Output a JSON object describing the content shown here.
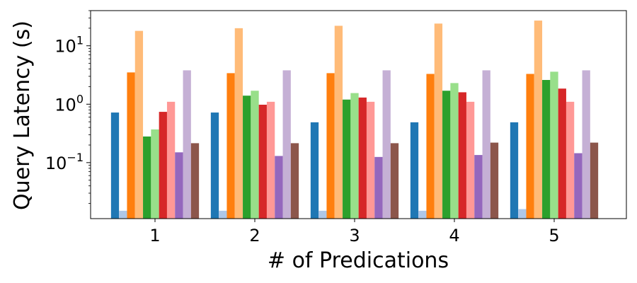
{
  "chart_data": {
    "type": "bar",
    "xlabel": "# of Predications",
    "ylabel": "Query Latency (s)",
    "y_scale": "log",
    "ylim": [
      0.011,
      40
    ],
    "y_ticks": [
      {
        "value": 0.1,
        "base": "10",
        "exp": "−1"
      },
      {
        "value": 1,
        "base": "10",
        "exp": "0"
      },
      {
        "value": 10,
        "base": "10",
        "exp": "1"
      }
    ],
    "categories": [
      "1",
      "2",
      "3",
      "4",
      "5"
    ],
    "series": [
      {
        "color": "#1f77b4",
        "values": [
          0.72,
          0.72,
          0.49,
          0.49,
          0.49
        ]
      },
      {
        "color": "#aec7e8",
        "values": [
          0.015,
          0.015,
          0.015,
          0.015,
          0.016
        ]
      },
      {
        "color": "#ff7f0e",
        "values": [
          3.5,
          3.4,
          3.4,
          3.3,
          3.3
        ]
      },
      {
        "color": "#ffbb78",
        "values": [
          18,
          20,
          22,
          24,
          27
        ]
      },
      {
        "color": "#2ca02c",
        "values": [
          0.28,
          1.4,
          1.2,
          1.7,
          2.6
        ]
      },
      {
        "color": "#98df8a",
        "values": [
          0.37,
          1.7,
          1.55,
          2.3,
          3.6
        ]
      },
      {
        "color": "#d62728",
        "values": [
          0.74,
          0.98,
          1.3,
          1.6,
          1.85
        ]
      },
      {
        "color": "#ff9896",
        "values": [
          1.1,
          1.1,
          1.1,
          1.1,
          1.1
        ]
      },
      {
        "color": "#9467bd",
        "values": [
          0.15,
          0.13,
          0.125,
          0.135,
          0.145
        ]
      },
      {
        "color": "#c5b0d5",
        "values": [
          3.8,
          3.8,
          3.8,
          3.8,
          3.8
        ]
      },
      {
        "color": "#8c564b",
        "values": [
          0.215,
          0.215,
          0.215,
          0.22,
          0.22
        ]
      }
    ]
  }
}
